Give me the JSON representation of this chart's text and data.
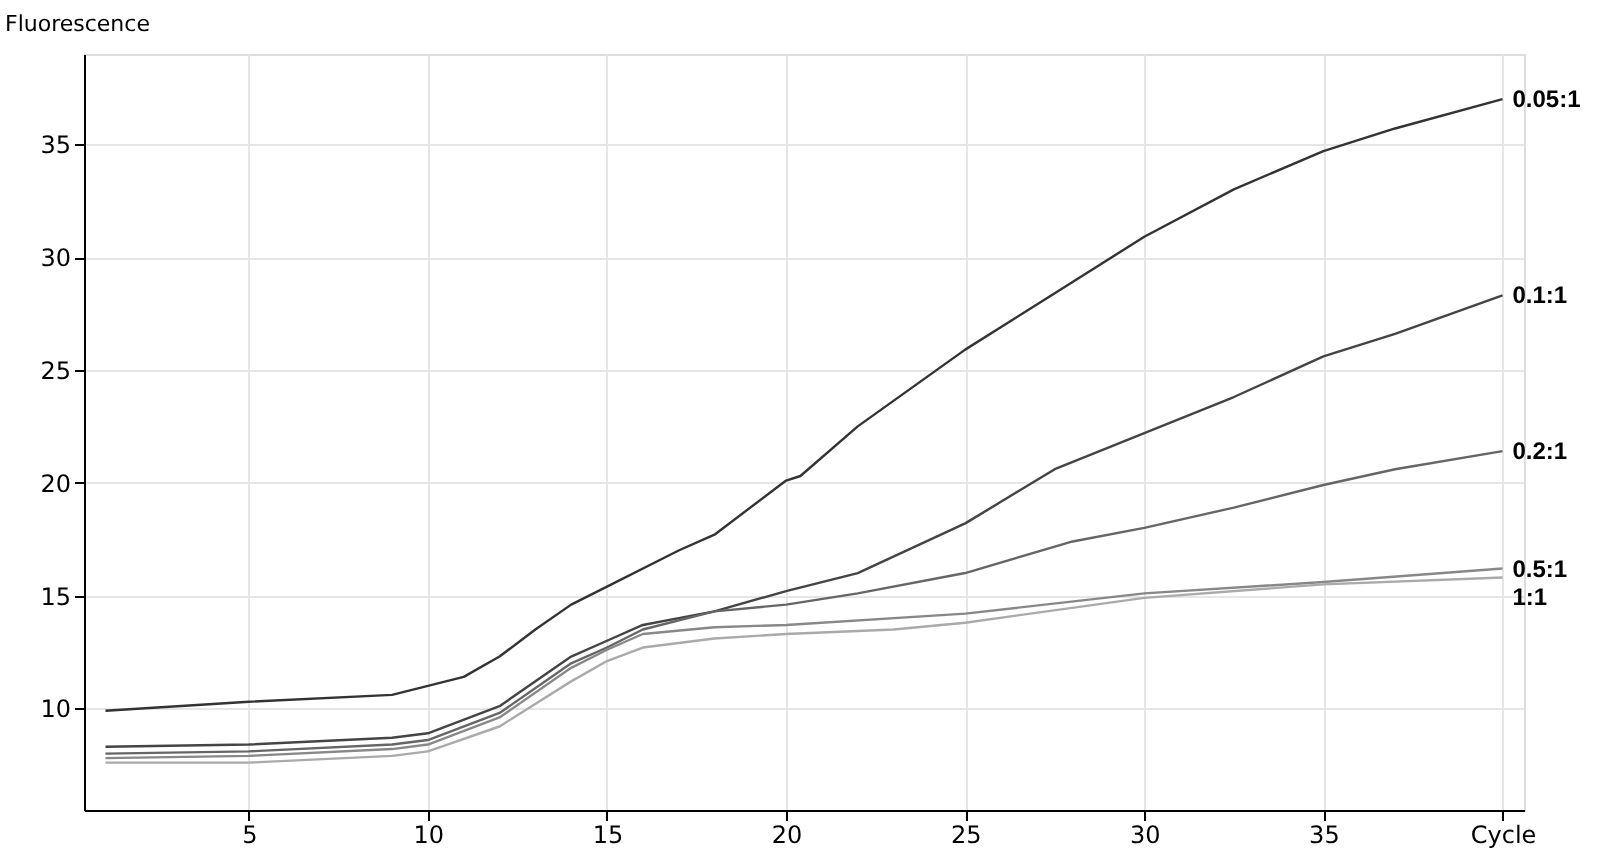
{
  "chart_data": {
    "type": "line",
    "ylabel": "Fluorescence",
    "xlim": [
      0.4,
      40.6
    ],
    "xticks": [
      5,
      10,
      15,
      20,
      25,
      30,
      35,
      {
        "value": 40,
        "label": "Cycle"
      }
    ],
    "ylim": [
      5.5,
      39
    ],
    "yticks": [
      10,
      15,
      20,
      25,
      30,
      35
    ],
    "grid": true,
    "legend": false,
    "line_style": "solid",
    "series": [
      {
        "name": "0.05:1",
        "color": "#333333",
        "x": [
          1,
          5,
          9,
          10,
          11,
          12,
          13,
          14,
          15,
          17,
          18,
          20,
          20.4,
          22,
          25,
          27.5,
          30,
          32.5,
          35,
          37,
          40
        ],
        "values": [
          9.9,
          10.3,
          10.6,
          11.0,
          11.4,
          12.3,
          13.5,
          14.6,
          15.4,
          17.0,
          17.7,
          20.1,
          20.3,
          22.5,
          25.9,
          28.4,
          30.9,
          33.0,
          34.7,
          35.7,
          37.0
        ]
      },
      {
        "name": "0.1:1",
        "color": "#444444",
        "x": [
          1,
          5,
          9,
          10,
          12,
          14,
          15,
          16,
          18,
          20,
          22,
          25,
          27.5,
          30,
          32.5,
          35,
          37,
          40
        ],
        "values": [
          8.3,
          8.4,
          8.7,
          8.9,
          10.1,
          12.3,
          13.0,
          13.7,
          14.3,
          15.2,
          16.0,
          18.2,
          20.6,
          22.2,
          23.8,
          25.6,
          26.6,
          28.3
        ]
      },
      {
        "name": "0.2:1",
        "color": "#666666",
        "x": [
          1,
          5,
          9,
          10,
          12,
          14,
          15,
          16,
          18,
          20,
          22,
          25,
          28,
          30,
          32.5,
          35,
          37,
          40
        ],
        "values": [
          8.0,
          8.1,
          8.4,
          8.6,
          9.8,
          12.0,
          12.7,
          13.5,
          14.3,
          14.6,
          15.1,
          16.0,
          17.4,
          18.0,
          18.9,
          19.9,
          20.6,
          21.4
        ]
      },
      {
        "name": "0.5:1",
        "color": "#888888",
        "x": [
          1,
          5,
          9,
          10,
          12,
          14,
          15,
          16,
          18,
          20,
          25,
          30,
          35,
          40
        ],
        "values": [
          7.8,
          7.9,
          8.2,
          8.4,
          9.6,
          11.8,
          12.6,
          13.3,
          13.6,
          13.7,
          14.2,
          15.1,
          15.6,
          16.2
        ]
      },
      {
        "name": "1:1",
        "color": "#aaaaaa",
        "x": [
          1,
          5,
          9,
          10,
          12,
          14,
          15,
          16,
          18,
          20,
          23,
          25,
          30,
          35,
          40
        ],
        "values": [
          7.6,
          7.6,
          7.9,
          8.1,
          9.2,
          11.2,
          12.1,
          12.7,
          13.1,
          13.3,
          13.5,
          13.8,
          14.9,
          15.5,
          15.8
        ]
      }
    ]
  }
}
